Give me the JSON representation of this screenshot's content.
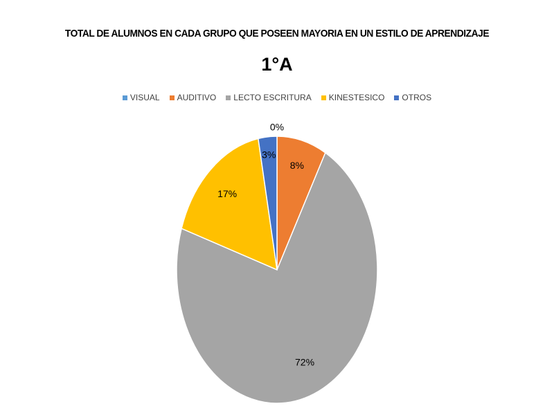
{
  "chart_data": {
    "type": "pie",
    "title": "TOTAL DE ALUMNOS  EN CADA GRUPO QUE POSEEN MAYORIA EN UN ESTILO DE APRENDIZAJE",
    "subtitle": "1°A",
    "legend_position": "top",
    "categories": [
      "VISUAL",
      "AUDITIVO",
      "LECTO ESCRITURA",
      "KINESTESICO",
      "OTROS"
    ],
    "values": [
      0,
      8,
      72,
      17,
      3
    ],
    "labels": [
      "0%",
      "8%",
      "72%",
      "17%",
      "3%"
    ],
    "colors": [
      "#5B9BD5",
      "#ED7D31",
      "#A5A5A5",
      "#FFC000",
      "#4472C4"
    ]
  }
}
